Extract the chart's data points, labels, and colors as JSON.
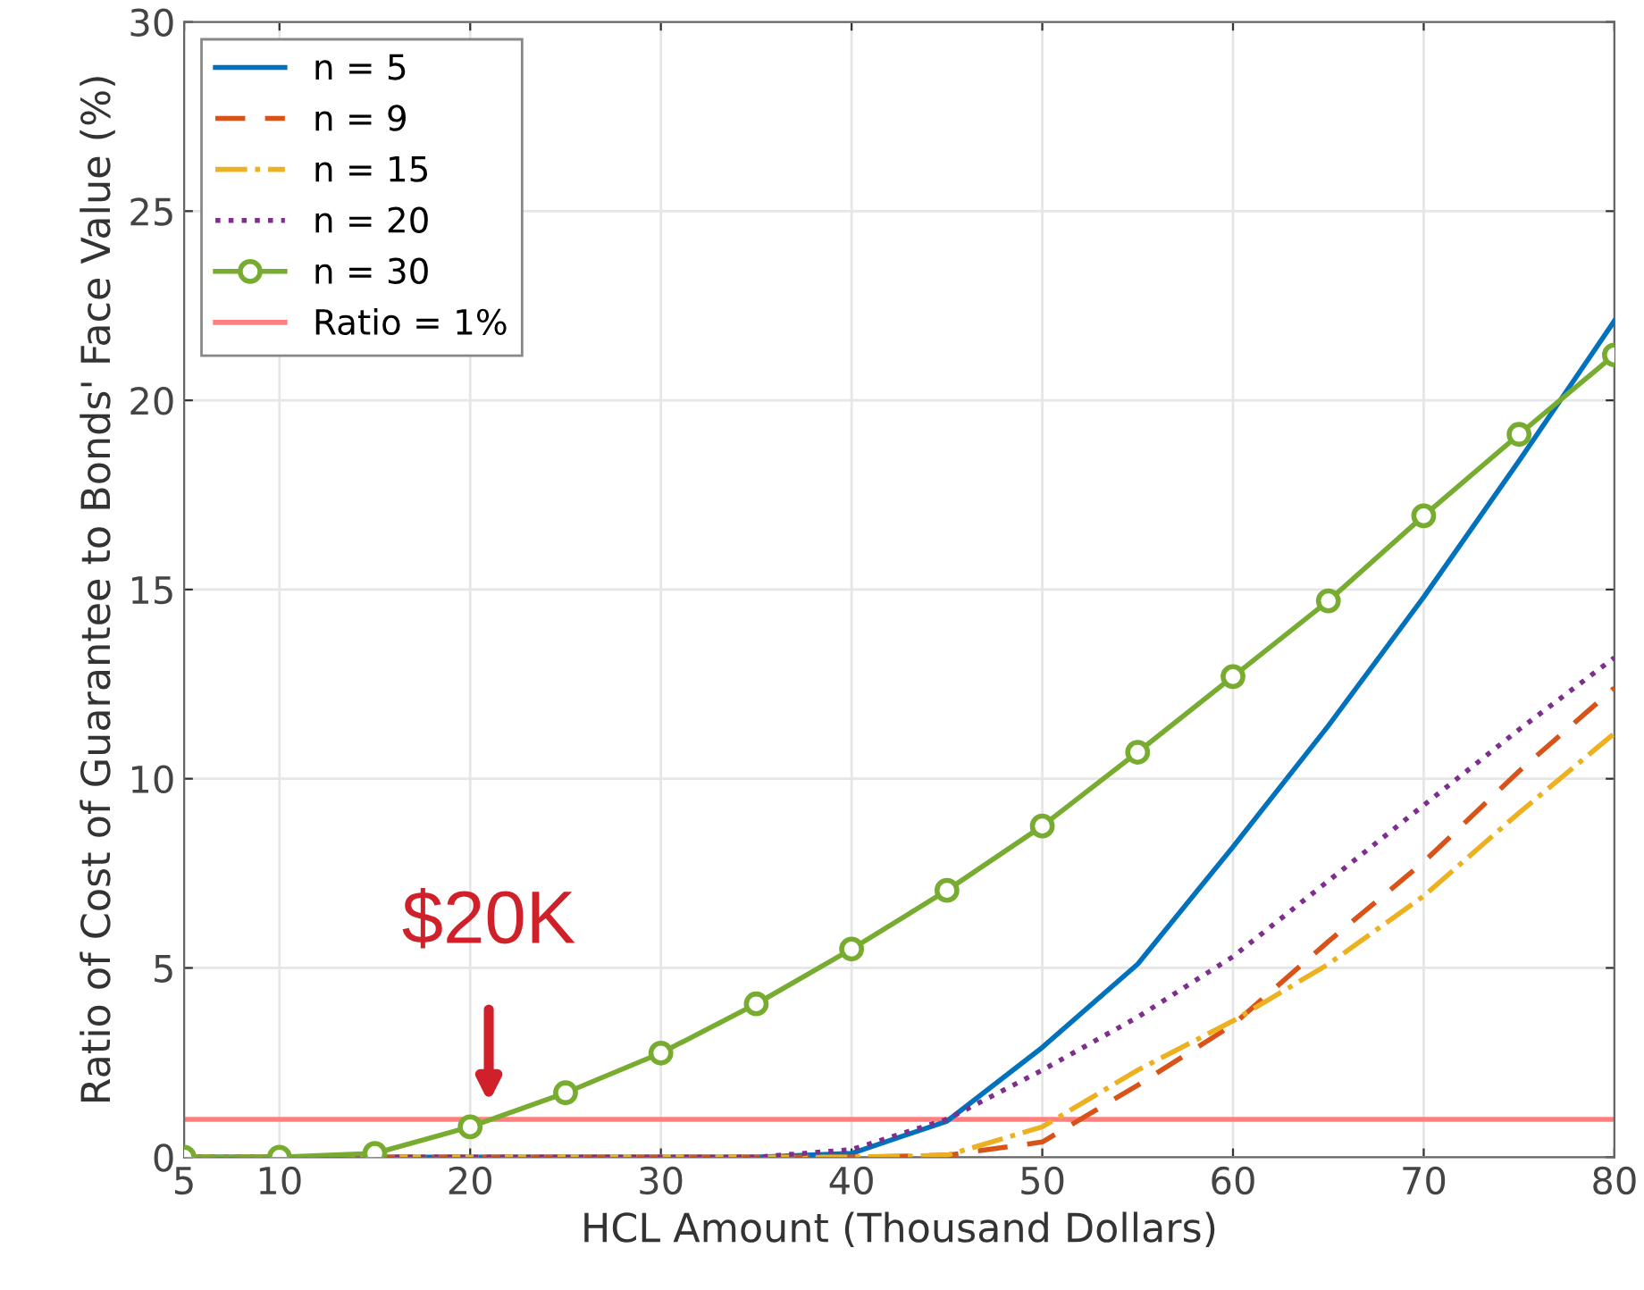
{
  "chart_data": {
    "type": "line",
    "xlabel": "HCL Amount (Thousand Dollars)",
    "ylabel": "Ratio of Cost of Guarantee to Bonds' Face Value (%)",
    "x": [
      5,
      10,
      15,
      20,
      25,
      30,
      35,
      40,
      45,
      50,
      55,
      60,
      65,
      70,
      75,
      80
    ],
    "series": [
      {
        "name": "n = 5",
        "color": "#0072bd",
        "line_style": "solid",
        "values": [
          0,
          0,
          0,
          0,
          0,
          0,
          0,
          0.1,
          0.95,
          2.9,
          5.1,
          8.2,
          11.4,
          14.8,
          18.4,
          22.1
        ]
      },
      {
        "name": "n = 9",
        "color": "#d95319",
        "line_style": "dashed",
        "values": [
          0,
          0,
          0,
          0,
          0,
          0,
          0,
          0,
          0.05,
          0.4,
          1.9,
          3.5,
          5.7,
          7.8,
          10.2,
          12.4
        ]
      },
      {
        "name": "n = 15",
        "color": "#edb120",
        "line_style": "dashdot",
        "values": [
          0,
          0,
          0,
          0,
          0,
          0,
          0,
          0,
          0.05,
          0.8,
          2.3,
          3.6,
          5.1,
          6.9,
          9.1,
          11.2
        ]
      },
      {
        "name": "n = 20",
        "color": "#7e2f8e",
        "line_style": "dotted",
        "values": [
          0,
          0,
          0,
          0,
          0,
          0,
          0,
          0.2,
          1.0,
          2.3,
          3.7,
          5.3,
          7.3,
          9.3,
          11.3,
          13.2
        ]
      },
      {
        "name": "n = 30",
        "color": "#77ac30",
        "line_style": "solid",
        "marker": "circle",
        "values": [
          0,
          0,
          0.1,
          0.8,
          1.7,
          2.75,
          4.05,
          5.5,
          7.05,
          8.75,
          10.7,
          12.7,
          14.7,
          16.95,
          19.1,
          21.2
        ]
      }
    ],
    "ref_lines": [
      {
        "axis": "y",
        "value": 1,
        "label": "Ratio = 1%",
        "color": "#ff7f7f",
        "line_style": "solid"
      }
    ],
    "annotations": [
      "$20K"
    ],
    "xlim": [
      5,
      80
    ],
    "xticks": [
      5,
      10,
      20,
      30,
      40,
      50,
      60,
      70,
      80
    ],
    "ylim": [
      0,
      30
    ],
    "yticks": [
      0,
      5,
      10,
      15,
      20,
      25,
      30
    ],
    "grid": true,
    "legend": "top left"
  }
}
